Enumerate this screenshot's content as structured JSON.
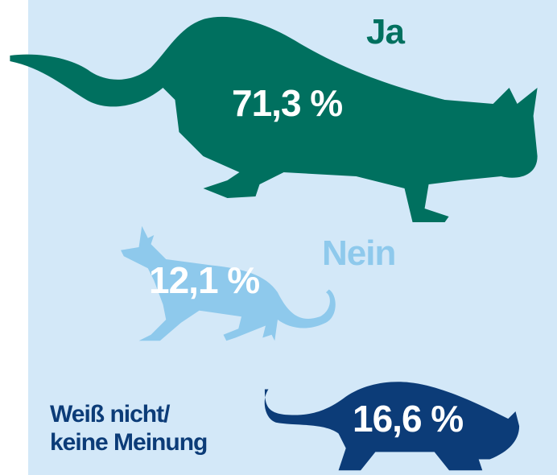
{
  "chart_data": {
    "type": "pictogram",
    "categories": [
      "Ja",
      "Nein",
      "Weiß nicht/\nkeine Meinung"
    ],
    "values": [
      71.3,
      12.1,
      16.6
    ],
    "value_labels": [
      "71,3 %",
      "12,1 %",
      "16,6 %"
    ],
    "colors": [
      "#00705f",
      "#8ec9ec",
      "#0c3c78"
    ]
  }
}
